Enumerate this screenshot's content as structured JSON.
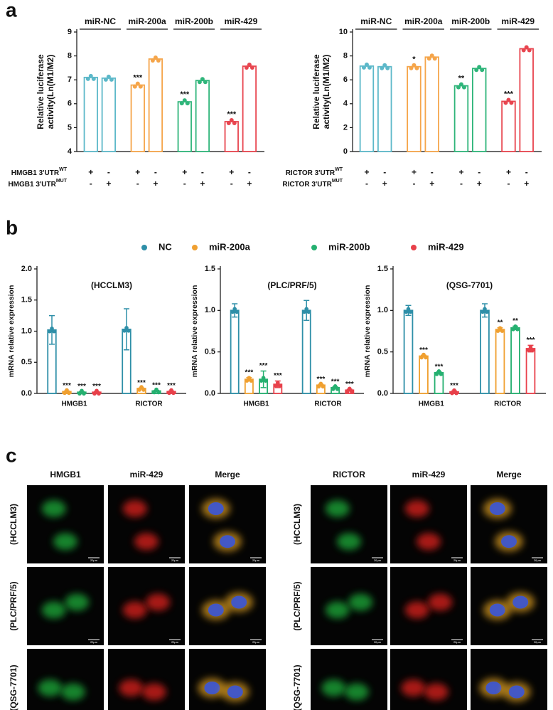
{
  "panels": [
    "a",
    "b",
    "c"
  ],
  "chart_data": [
    {
      "type": "bar",
      "ylabel": [
        "Relative luciferase",
        "activity(Ln(M1/M2)"
      ],
      "ylim": [
        4,
        9
      ],
      "yticks": [
        4,
        5,
        6,
        7,
        8,
        9
      ],
      "series": [
        {
          "name": "miR-NC",
          "color": "#5cb8c9",
          "values": [
            7.1,
            7.07
          ],
          "annotations": [
            null,
            null
          ]
        },
        {
          "name": "miR-200a",
          "color": "#f5a54a",
          "values": [
            6.78,
            7.87
          ],
          "annotations": [
            "***",
            null
          ]
        },
        {
          "name": "miR-200b",
          "color": "#2fb57a",
          "values": [
            6.08,
            6.97
          ],
          "annotations": [
            "***",
            null
          ]
        },
        {
          "name": "miR-429",
          "color": "#e8454f",
          "values": [
            5.25,
            7.57
          ],
          "annotations": [
            "***",
            null
          ]
        }
      ],
      "rows": [
        {
          "label": "HMGB1 3'UTR",
          "sup": "WT",
          "signs": [
            "+",
            "-",
            "+",
            "-",
            "+",
            "-",
            "+",
            "-"
          ]
        },
        {
          "label": "HMGB1 3'UTR",
          "sup": "MUT",
          "signs": [
            "-",
            "+",
            "-",
            "+",
            "-",
            "+",
            "-",
            "+"
          ]
        }
      ]
    },
    {
      "type": "bar",
      "ylabel": [
        "Relative luciferase",
        "activity(Ln(M1/M2)"
      ],
      "ylim": [
        0,
        10
      ],
      "yticks": [
        0,
        2,
        4,
        6,
        8,
        10
      ],
      "series": [
        {
          "name": "miR-NC",
          "color": "#5cb8c9",
          "values": [
            7.15,
            7.1
          ],
          "annotations": [
            null,
            null
          ]
        },
        {
          "name": "miR-200a",
          "color": "#f5a54a",
          "values": [
            7.1,
            7.9
          ],
          "annotations": [
            "*",
            null
          ]
        },
        {
          "name": "miR-200b",
          "color": "#2fb57a",
          "values": [
            5.5,
            6.95
          ],
          "annotations": [
            "**",
            null
          ]
        },
        {
          "name": "miR-429",
          "color": "#e8454f",
          "values": [
            4.2,
            8.6
          ],
          "annotations": [
            "***",
            null
          ]
        }
      ],
      "rows": [
        {
          "label": "RICTOR 3'UTR",
          "sup": "WT",
          "signs": [
            "+",
            "-",
            "+",
            "-",
            "+",
            "-",
            "+",
            "-"
          ]
        },
        {
          "label": "RICTOR 3'UTR",
          "sup": "MUT",
          "signs": [
            "-",
            "+",
            "-",
            "+",
            "-",
            "+",
            "-",
            "+"
          ]
        }
      ]
    },
    {
      "type": "grouped_bar",
      "title": "(HCCLM3)",
      "ylabel": "mRNA relative expression",
      "categories": [
        "HMGB1",
        "RICTOR"
      ],
      "ylim": [
        0,
        2
      ],
      "yticks": [
        {
          "value": 0,
          "label": "0.0"
        },
        0.5,
        {
          "value": 1,
          "label": "1.0"
        },
        1.5,
        {
          "value": 2,
          "label": "2.0"
        }
      ],
      "series": [
        {
          "color": "#2e8fa8",
          "values": [
            1.02,
            1.03
          ],
          "errors": [
            0.23,
            0.33
          ],
          "annotations": [
            null,
            null
          ]
        },
        {
          "color": "#f0a030",
          "values": [
            0.03,
            0.08
          ],
          "errors": [
            0.01,
            0.01
          ],
          "annotations": [
            "***",
            "***"
          ]
        },
        {
          "color": "#25b070",
          "values": [
            0.02,
            0.04
          ],
          "errors": [
            0.01,
            0.01
          ],
          "annotations": [
            "***",
            "***"
          ]
        },
        {
          "color": "#e8404a",
          "values": [
            0.02,
            0.03
          ],
          "errors": [
            0.01,
            0.01
          ],
          "annotations": [
            "***",
            "***"
          ]
        }
      ]
    },
    {
      "type": "grouped_bar",
      "title": "(PLC/PRF/5)",
      "ylabel": "mRNA relative expression",
      "categories": [
        "HMGB1",
        "RICTOR"
      ],
      "ylim": [
        0,
        1.5
      ],
      "yticks": [
        {
          "value": 0,
          "label": "0.0"
        },
        0.5,
        {
          "value": 1,
          "label": "1.0"
        },
        1.5
      ],
      "series": [
        {
          "color": "#2e8fa8",
          "values": [
            1.0,
            1.0
          ],
          "errors": [
            0.08,
            0.12
          ],
          "annotations": [
            null,
            null
          ]
        },
        {
          "color": "#f0a030",
          "values": [
            0.17,
            0.1
          ],
          "errors": [
            0.02,
            0.01
          ],
          "annotations": [
            "***",
            "***"
          ]
        },
        {
          "color": "#25b070",
          "values": [
            0.17,
            0.07
          ],
          "errors": [
            0.1,
            0.01
          ],
          "annotations": [
            "***",
            "***"
          ]
        },
        {
          "color": "#e8404a",
          "values": [
            0.11,
            0.04
          ],
          "errors": [
            0.04,
            0.01
          ],
          "annotations": [
            "***",
            "***"
          ]
        }
      ]
    },
    {
      "type": "grouped_bar",
      "title": "(QSG-7701)",
      "ylabel": "mRNA relative expression",
      "categories": [
        "HMGB1",
        "RICTOR"
      ],
      "ylim": [
        0,
        1.5
      ],
      "yticks": [
        {
          "value": 0,
          "label": "0.0"
        },
        0.5,
        {
          "value": 1,
          "label": "1.0"
        },
        1.5
      ],
      "series": [
        {
          "color": "#2e8fa8",
          "values": [
            1.0,
            1.0
          ],
          "errors": [
            0.06,
            0.08
          ],
          "annotations": [
            null,
            null
          ]
        },
        {
          "color": "#f0a030",
          "values": [
            0.45,
            0.77
          ],
          "errors": [
            0.01,
            0.02
          ],
          "annotations": [
            "***",
            "**"
          ]
        },
        {
          "color": "#25b070",
          "values": [
            0.25,
            0.79
          ],
          "errors": [
            0.01,
            0.02
          ],
          "annotations": [
            "***",
            "**"
          ]
        },
        {
          "color": "#e8404a",
          "values": [
            0.02,
            0.54
          ],
          "errors": [
            0.01,
            0.04
          ],
          "annotations": [
            "***",
            "***"
          ]
        }
      ]
    }
  ],
  "legend": [
    {
      "name": "NC",
      "color": "#2e8fa8"
    },
    {
      "name": "miR-200a",
      "color": "#f0a030"
    },
    {
      "name": "miR-200b",
      "color": "#25b070"
    },
    {
      "name": "miR-429",
      "color": "#e8404a"
    }
  ],
  "microscopy": [
    {
      "headers": [
        "HMGB1",
        "miR-429",
        "Merge"
      ],
      "rows": [
        "(HCCLM3)",
        "(PLC/PRF/5)",
        "(QSG-7701)"
      ]
    },
    {
      "headers": [
        "RICTOR",
        "miR-429",
        "Merge"
      ],
      "rows": [
        "(HCCLM3)",
        "(PLC/PRF/5)",
        "(QSG-7701)"
      ]
    }
  ],
  "scale_bar": "20μm"
}
